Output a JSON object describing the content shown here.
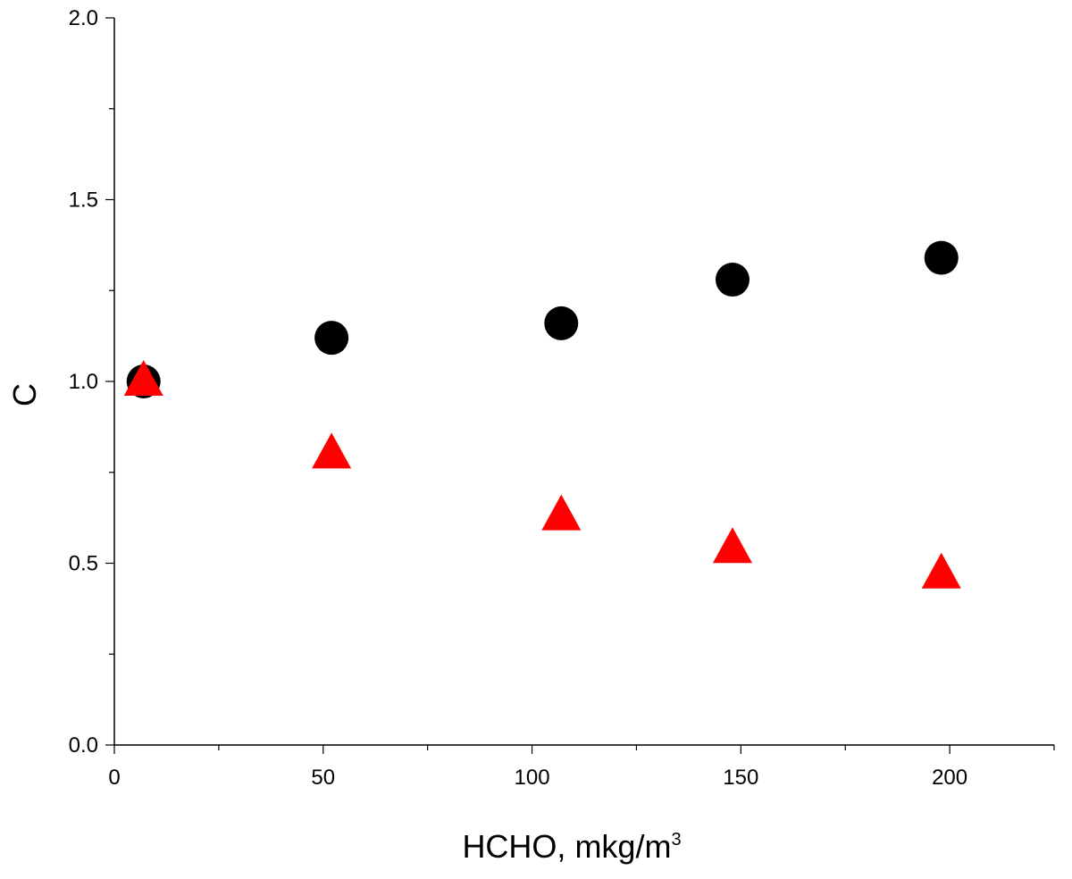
{
  "chart_data": {
    "type": "scatter",
    "xlabel": "HCHO, mkg/m",
    "xlabel_superscript": "3",
    "ylabel": "C",
    "xlim": [
      0,
      225
    ],
    "ylim": [
      0,
      2.0
    ],
    "x_ticks": [
      0,
      50,
      100,
      150,
      200
    ],
    "x_minor_ticks": [
      25,
      75,
      125,
      175,
      225
    ],
    "y_ticks": [
      0.0,
      0.5,
      1.0,
      1.5,
      2.0
    ],
    "y_tick_labels": [
      "0.0",
      "0.5",
      "1.0",
      "1.5",
      "2.0"
    ],
    "y_minor_ticks": [
      0.25,
      0.75,
      1.25,
      1.75
    ],
    "grid": false,
    "series": [
      {
        "marker": "circle",
        "color": "#000000",
        "x": [
          7,
          52,
          107,
          148,
          198
        ],
        "y": [
          1.0,
          1.12,
          1.16,
          1.28,
          1.34
        ]
      },
      {
        "marker": "triangle",
        "color": "#ff0000",
        "x": [
          7,
          52,
          107,
          148,
          198
        ],
        "y": [
          1.0,
          0.8,
          0.63,
          0.54,
          0.47
        ]
      }
    ]
  }
}
